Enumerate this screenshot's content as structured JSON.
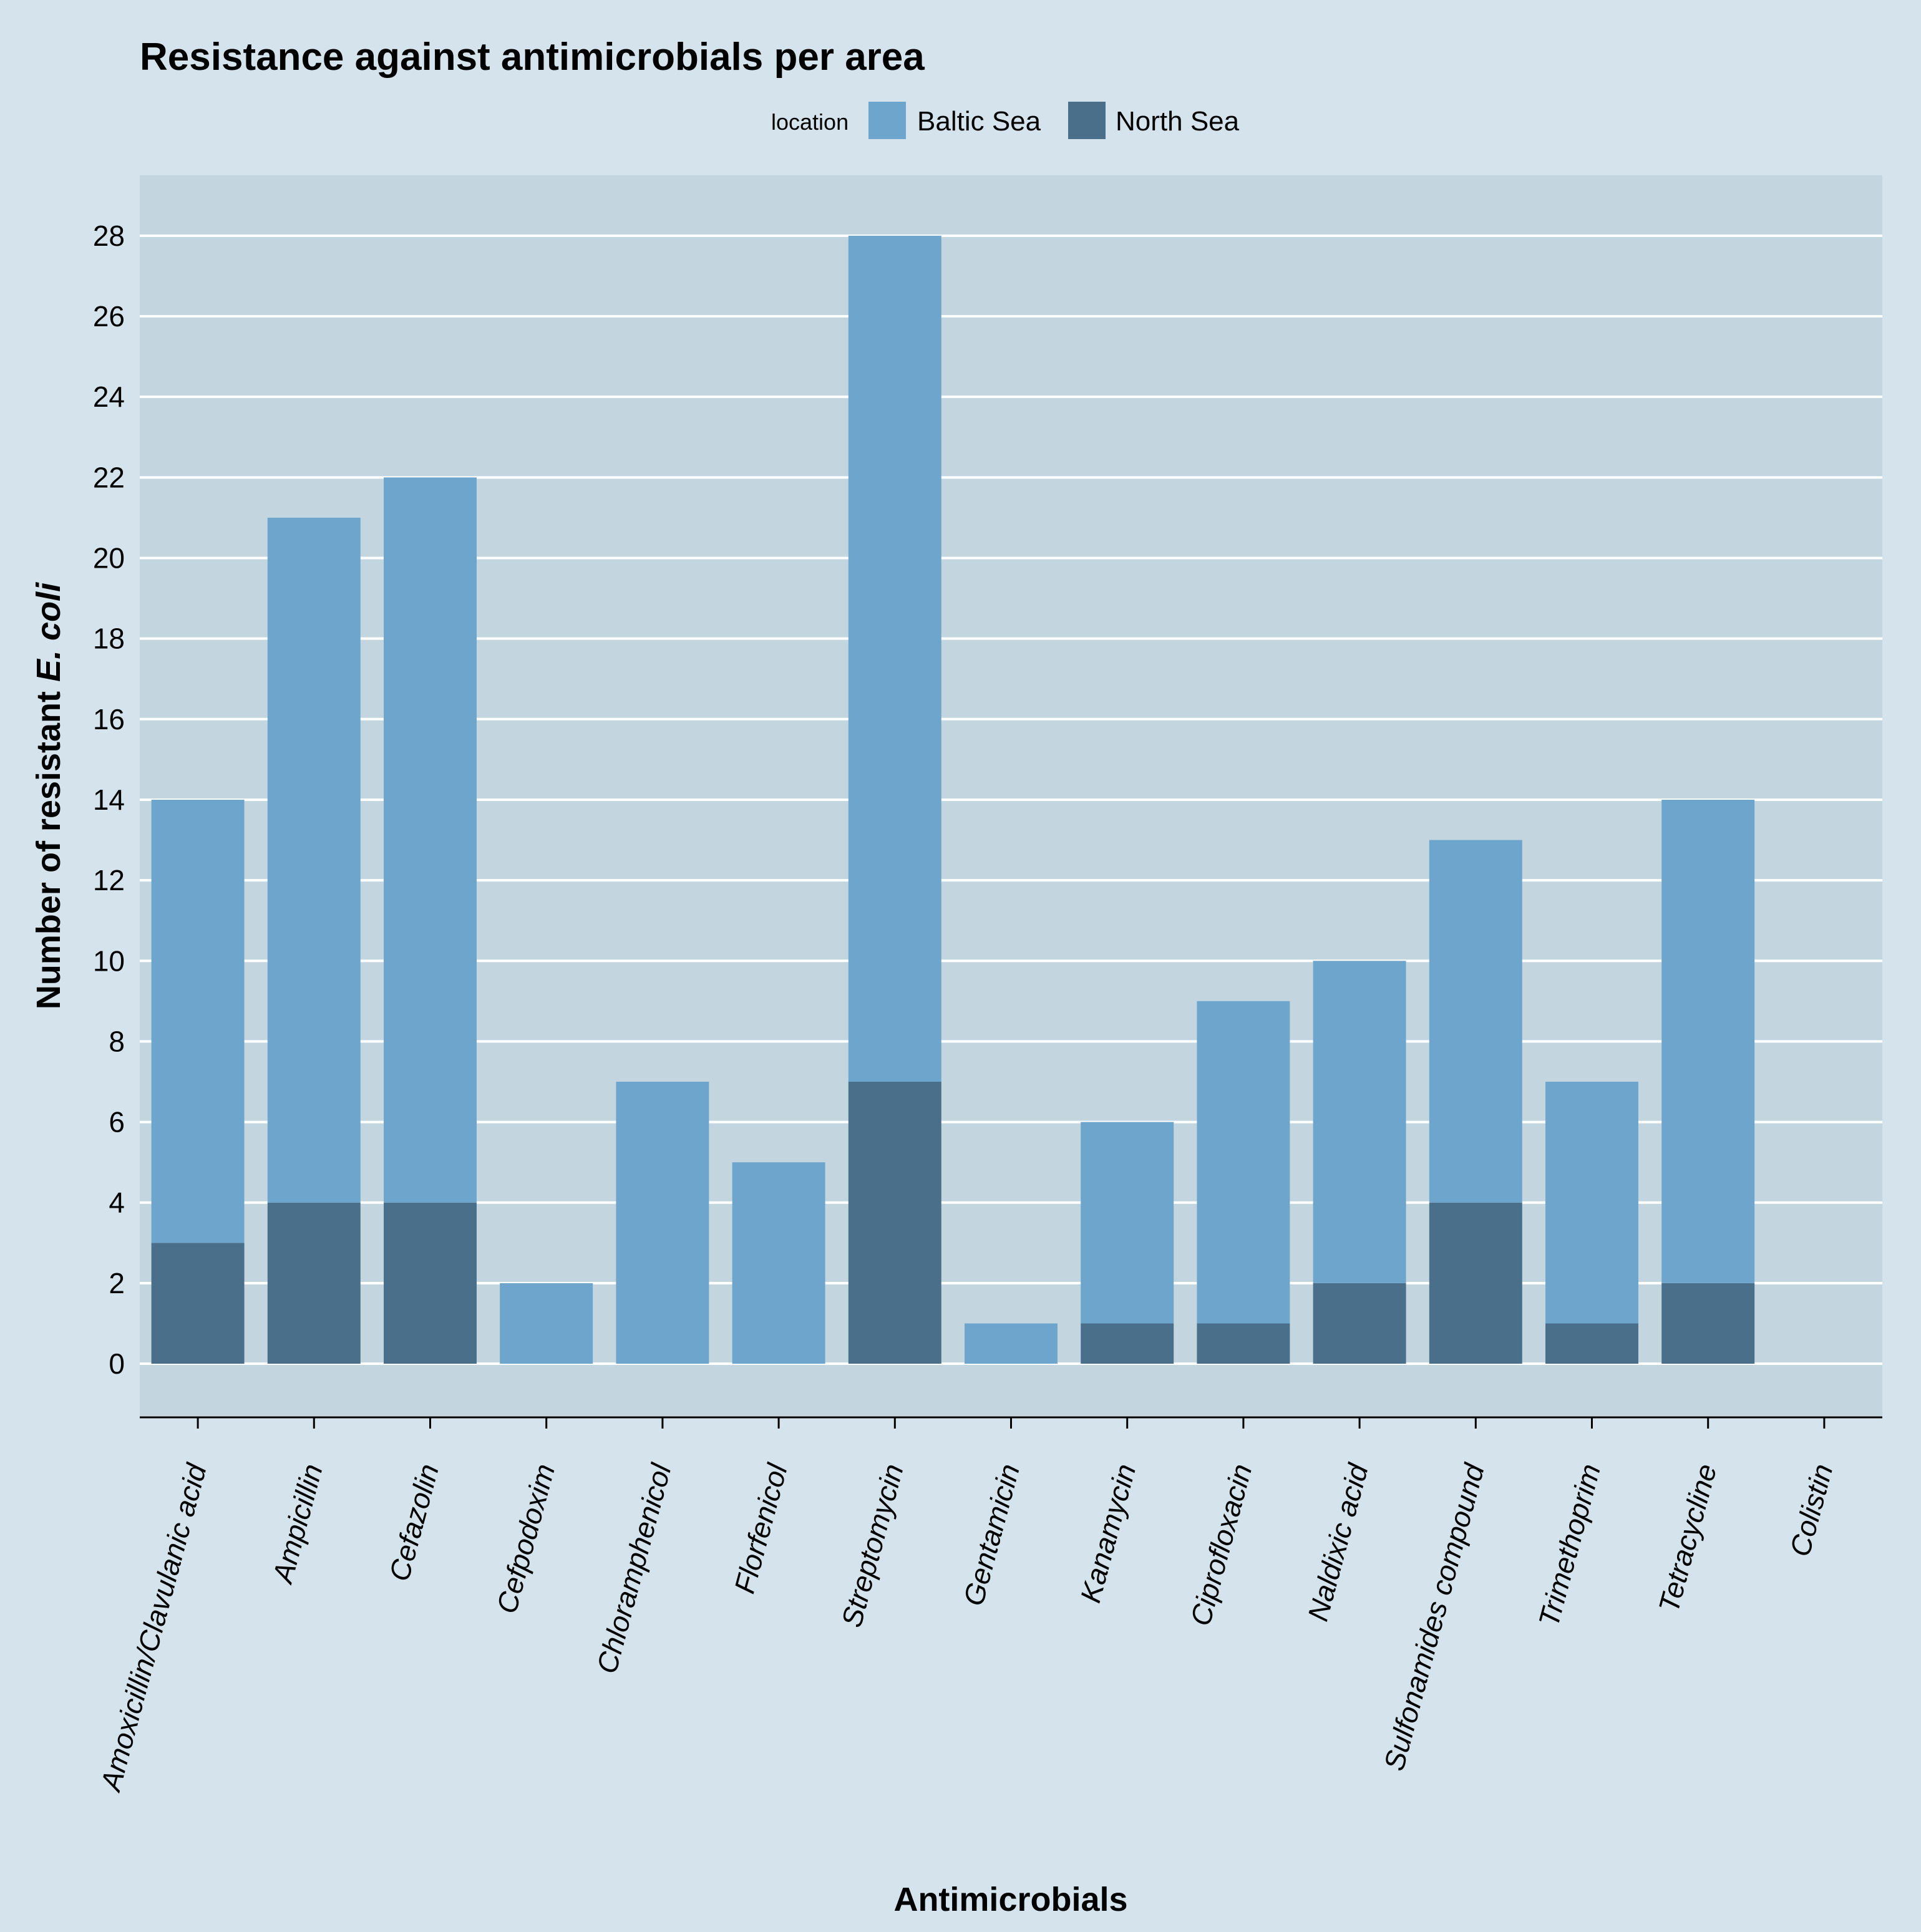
{
  "chart_data": {
    "type": "bar",
    "stacked": true,
    "title": "Resistance against antimicrobials per area",
    "xlabel": "Antimicrobials",
    "ylabel_prefix": "Number of resistant ",
    "ylabel_italic": "E. coli",
    "legend_title": "location",
    "legend_position": "top",
    "ylim": [
      -1.3,
      29.5
    ],
    "yticks": [
      0,
      2,
      4,
      6,
      8,
      10,
      12,
      14,
      16,
      18,
      20,
      22,
      24,
      26,
      28
    ],
    "grid": true,
    "categories": [
      "Amoxicillin/Clavulanic acid",
      "Ampicillin",
      "Cefazolin",
      "Cefpodoxim",
      "Chloramphenicol",
      "Florfenicol",
      "Streptomycin",
      "Gentamicin",
      "Kanamycin",
      "Ciprofloxacin",
      "Naldixic acid",
      "Sulfonamides compound",
      "Trimethoprim",
      "Tetracycline",
      "Colistin"
    ],
    "series": [
      {
        "name": "Baltic Sea",
        "color": "#6ea5cc",
        "values": [
          11,
          17,
          18,
          2,
          7,
          5,
          21,
          1,
          5,
          8,
          8,
          9,
          6,
          12,
          0
        ]
      },
      {
        "name": "North Sea",
        "color": "#4a6f8a",
        "values": [
          3,
          4,
          4,
          0,
          0,
          0,
          7,
          0,
          1,
          1,
          2,
          4,
          1,
          2,
          0
        ]
      }
    ],
    "colors": {
      "panel_background": "#c3d6e0",
      "page_background": "#d5e4ec",
      "gridline": "#ffffff"
    }
  }
}
